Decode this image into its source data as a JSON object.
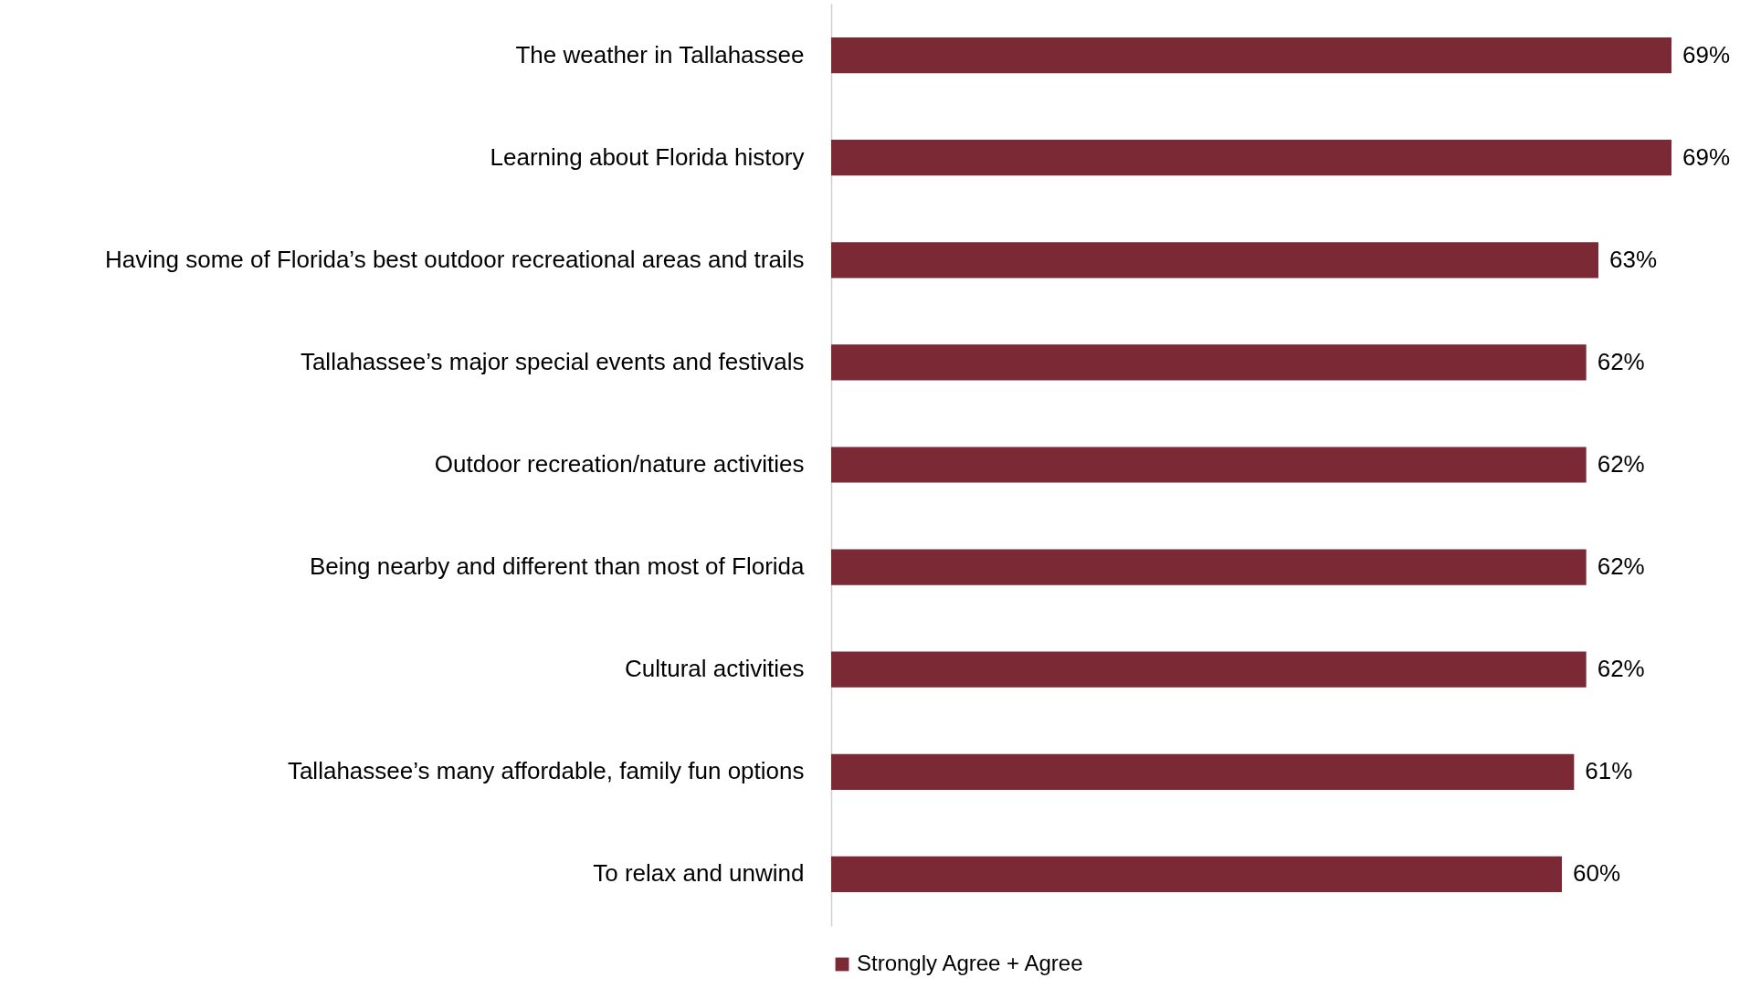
{
  "chart_data": {
    "type": "bar",
    "orientation": "horizontal",
    "categories": [
      "The weather in Tallahassee",
      "Learning about Florida history",
      "Having some of Florida’s best outdoor recreational areas and trails",
      "Tallahassee’s major special events and festivals",
      "Outdoor recreation/nature activities",
      "Being nearby and different than most of Florida",
      "Cultural activities",
      "Tallahassee’s many affordable, family fun options",
      "To relax and unwind"
    ],
    "series": [
      {
        "name": "Strongly Agree + Agree",
        "color": "#7b2a35",
        "values": [
          69,
          69,
          63,
          62,
          62,
          62,
          62,
          61,
          60
        ],
        "value_labels": [
          "69%",
          "69%",
          "63%",
          "62%",
          "62%",
          "62%",
          "62%",
          "61%",
          "60%"
        ]
      }
    ],
    "legend": "bottom"
  }
}
